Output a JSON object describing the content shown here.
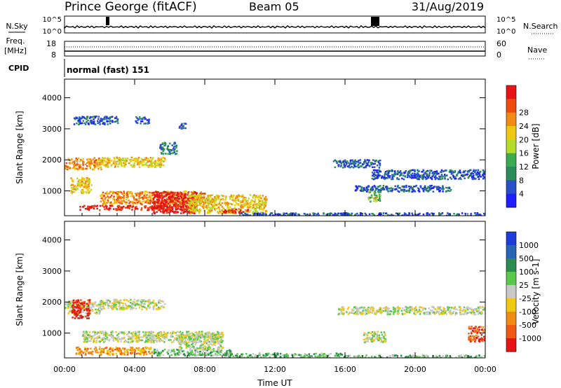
{
  "header": {
    "station": "Prince George (fitACF)",
    "beam": "Beam 05",
    "date": "31/Aug/2019"
  },
  "noise_panel": {
    "left_label": "N.Sky",
    "right_label": "N.Search",
    "left_ticks": [
      "10^5",
      "10^0"
    ],
    "right_ticks": [
      "10^5",
      "10^0"
    ],
    "left_line_color": "#000000"
  },
  "freq_panel": {
    "left_label_line1": "Freq.",
    "left_label_line2": "[MHz]",
    "right_label": "Nave",
    "left_ticks": [
      "18",
      "8"
    ],
    "right_ticks": [
      "60",
      "0"
    ]
  },
  "cpid": {
    "label": "CPID",
    "mode": "normal (fast) 151"
  },
  "chart_data": [
    {
      "type": "heatmap",
      "name": "power",
      "ylabel": "Slant Range [km]",
      "xlabel": "",
      "x_ticks": [
        "00:00",
        "04:00",
        "08:00",
        "12:00",
        "16:00",
        "20:00",
        "00:00"
      ],
      "y_ticks": [
        1000,
        2000,
        3000,
        4000
      ],
      "xlim_hours": [
        0,
        24
      ],
      "ylim": [
        200,
        4600
      ],
      "colorbar": {
        "label": "Power [dB]",
        "ticks": [
          "4",
          "8",
          "12",
          "16",
          "20",
          "24",
          "28"
        ],
        "colors": [
          "#1e1eff",
          "#2850c8",
          "#2a8c5a",
          "#3caa50",
          "#b4dc28",
          "#f0c814",
          "#f08c14",
          "#f04b0f",
          "#e61414"
        ]
      },
      "features": [
        {
          "t0": 0.0,
          "t1": 2.1,
          "r": 1900,
          "h": 380,
          "level": 6
        },
        {
          "t0": 2.0,
          "t1": 5.7,
          "r": 1950,
          "h": 320,
          "level": 5
        },
        {
          "t0": 5.4,
          "t1": 6.4,
          "r": 2400,
          "h": 380,
          "level": 2
        },
        {
          "t0": 0.5,
          "t1": 3.0,
          "r": 3300,
          "h": 260,
          "level": 1
        },
        {
          "t0": 4.0,
          "t1": 4.8,
          "r": 3300,
          "h": 220,
          "level": 1
        },
        {
          "t0": 6.5,
          "t1": 6.9,
          "r": 3100,
          "h": 200,
          "level": 1
        },
        {
          "t0": 0.3,
          "t1": 1.5,
          "r": 1200,
          "h": 500,
          "level": 5
        },
        {
          "t0": 0.8,
          "t1": 7.2,
          "r": 480,
          "h": 150,
          "level": 8
        },
        {
          "t0": 2.0,
          "t1": 8.0,
          "r": 800,
          "h": 420,
          "level": 6
        },
        {
          "t0": 5.0,
          "t1": 7.5,
          "r": 650,
          "h": 700,
          "level": 8
        },
        {
          "t0": 7.0,
          "t1": 11.5,
          "r": 600,
          "h": 600,
          "level": 5
        },
        {
          "t0": 9.0,
          "t1": 10.5,
          "r": 380,
          "h": 120,
          "level": 8
        },
        {
          "t0": 10.0,
          "t1": 24.0,
          "r": 270,
          "h": 90,
          "level": 1
        },
        {
          "t0": 15.3,
          "t1": 18.0,
          "r": 1900,
          "h": 250,
          "level": 1
        },
        {
          "t0": 17.5,
          "t1": 24.0,
          "r": 1550,
          "h": 300,
          "level": 1
        },
        {
          "t0": 16.5,
          "t1": 22.0,
          "r": 1100,
          "h": 200,
          "level": 1
        },
        {
          "t0": 17.3,
          "t1": 18.0,
          "r": 850,
          "h": 350,
          "level": 3
        },
        {
          "t0": 17.6,
          "t1": 17.8,
          "r": 750,
          "h": 150,
          "level": 5
        }
      ]
    },
    {
      "type": "heatmap",
      "name": "velocity",
      "ylabel": "Slant Range [km]",
      "xlabel": "Time UT",
      "x_ticks": [
        "00:00",
        "04:00",
        "08:00",
        "12:00",
        "16:00",
        "20:00",
        "00:00"
      ],
      "y_ticks": [
        1000,
        2000,
        3000,
        4000
      ],
      "xlim_hours": [
        0,
        24
      ],
      "ylim": [
        200,
        4600
      ],
      "colorbar": {
        "label": "Velocity [m s-1]",
        "ticks": [
          "1000",
          "500",
          "100",
          "25",
          "-25",
          "-100",
          "-500",
          "-1000"
        ],
        "colors": [
          "#1e3cdc",
          "#2864b4",
          "#2a8c50",
          "#5ac84a",
          "#c8c8c8",
          "#f0c814",
          "#f08c14",
          "#f05a14",
          "#e61414"
        ]
      },
      "features": [
        {
          "t0": 0.0,
          "t1": 2.1,
          "r": 1850,
          "h": 400,
          "level": 4
        },
        {
          "t0": 2.0,
          "t1": 5.7,
          "r": 1950,
          "h": 320,
          "level": 4
        },
        {
          "t0": 0.4,
          "t1": 1.4,
          "r": 1800,
          "h": 600,
          "level": 8
        },
        {
          "t0": 0.6,
          "t1": 5.0,
          "r": 450,
          "h": 250,
          "level": 6
        },
        {
          "t0": 1.0,
          "t1": 9.0,
          "r": 900,
          "h": 350,
          "level": 4
        },
        {
          "t0": 5.0,
          "t1": 9.5,
          "r": 400,
          "h": 200,
          "level": 3
        },
        {
          "t0": 6.5,
          "t1": 9.0,
          "r": 750,
          "h": 500,
          "level": 4
        },
        {
          "t0": 9.0,
          "t1": 16.0,
          "r": 300,
          "h": 150,
          "level": 3
        },
        {
          "t0": 15.5,
          "t1": 24.0,
          "r": 1750,
          "h": 250,
          "level": 4
        },
        {
          "t0": 17.0,
          "t1": 18.3,
          "r": 900,
          "h": 350,
          "level": 4
        },
        {
          "t0": 23.0,
          "t1": 24.0,
          "r": 1000,
          "h": 500,
          "level": 7
        },
        {
          "t0": 16.0,
          "t1": 24.0,
          "r": 270,
          "h": 80,
          "level": 3
        }
      ]
    }
  ]
}
